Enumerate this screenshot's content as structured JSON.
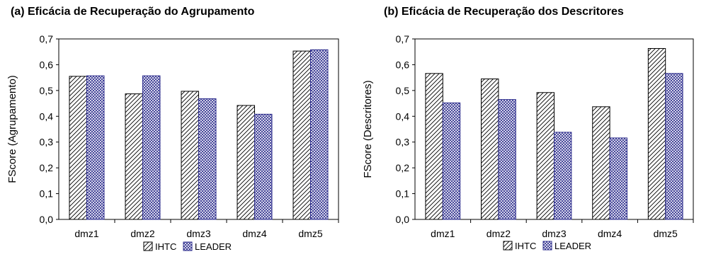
{
  "colors": {
    "ihtc": "#000000",
    "leader": "#2b2b8c",
    "axis": "#000000"
  },
  "chart_data": [
    {
      "type": "bar",
      "title": "(a) Eficácia de Recuperação do Agrupamento",
      "xlabel": "",
      "ylabel": "FScore (Agrupamento)",
      "ylim": [
        0,
        0.7
      ],
      "yticks": [
        "0,0",
        "0,1",
        "0,2",
        "0,3",
        "0,4",
        "0,5",
        "0,6",
        "0,7"
      ],
      "categories": [
        "dmz1",
        "dmz2",
        "dmz3",
        "dmz4",
        "dmz5"
      ],
      "series": [
        {
          "name": "IHTC",
          "pattern": "diagonal-hatch",
          "values": [
            0.555,
            0.487,
            0.497,
            0.442,
            0.653
          ]
        },
        {
          "name": "LEADER",
          "pattern": "crosshatch",
          "values": [
            0.557,
            0.557,
            0.468,
            0.408,
            0.658
          ]
        }
      ],
      "grid": false,
      "legend": "bottom"
    },
    {
      "type": "bar",
      "title": "(b) Eficácia de Recuperação dos Descritores",
      "xlabel": "",
      "ylabel": "FScore (Descritores)",
      "ylim": [
        0,
        0.7
      ],
      "yticks": [
        "0,0",
        "0,1",
        "0,2",
        "0,3",
        "0,4",
        "0,5",
        "0,6",
        "0,7"
      ],
      "categories": [
        "dmz1",
        "dmz2",
        "dmz3",
        "dmz4",
        "dmz5"
      ],
      "series": [
        {
          "name": "IHTC",
          "pattern": "diagonal-hatch",
          "values": [
            0.566,
            0.545,
            0.492,
            0.437,
            0.663
          ]
        },
        {
          "name": "LEADER",
          "pattern": "crosshatch",
          "values": [
            0.452,
            0.465,
            0.338,
            0.316,
            0.566
          ]
        }
      ],
      "grid": false,
      "legend": "bottom"
    }
  ]
}
